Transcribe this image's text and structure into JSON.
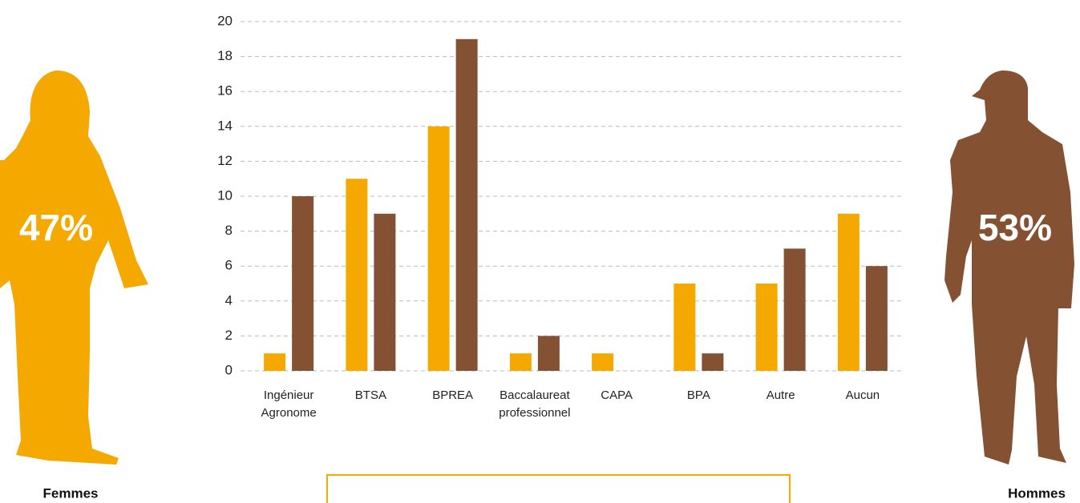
{
  "chart_data": {
    "type": "bar",
    "categories": [
      "Ingénieur Agronome",
      "BTSA",
      "BPREA",
      "Baccalaureat professionnel",
      "CAPA",
      "BPA",
      "Autre",
      "Aucun"
    ],
    "series": [
      {
        "name": "Femmes",
        "color": "#f5a800",
        "share_label": "47%",
        "values": [
          1,
          11,
          14,
          1,
          1,
          5,
          5,
          9
        ]
      },
      {
        "name": "Hommes",
        "color": "#845232",
        "share_label": "53%",
        "values": [
          10,
          9,
          19,
          2,
          0,
          1,
          7,
          6
        ]
      }
    ],
    "ylim": [
      0,
      20
    ],
    "yticks": [
      0,
      2,
      4,
      6,
      8,
      10,
      12,
      14,
      16,
      18,
      20
    ],
    "grid": true
  }
}
